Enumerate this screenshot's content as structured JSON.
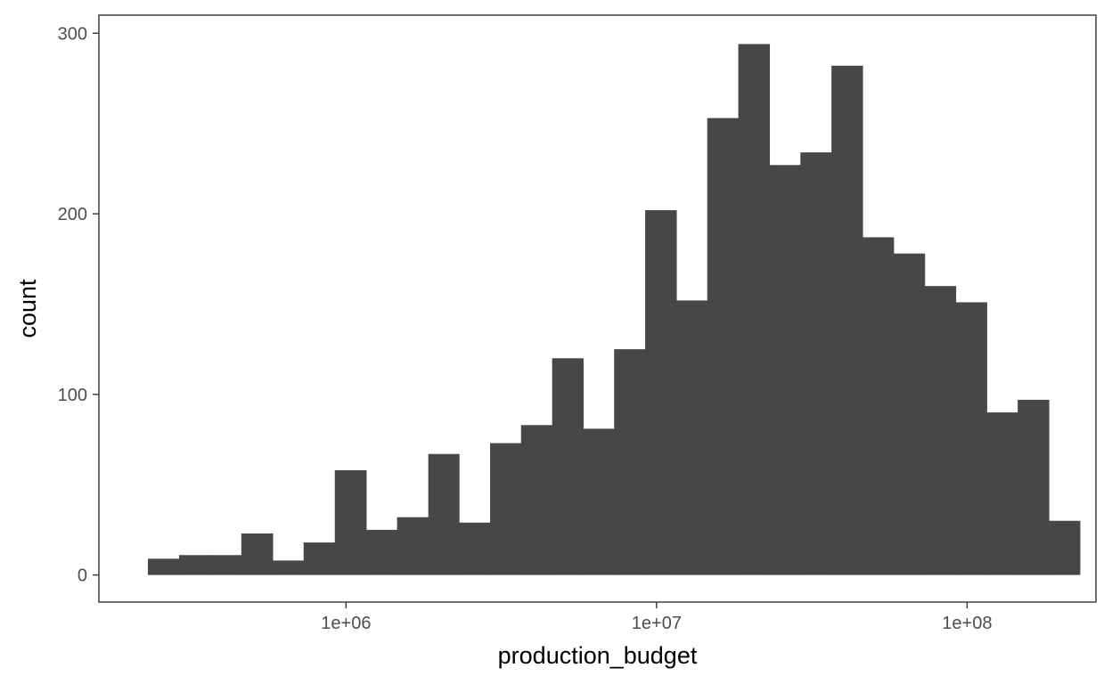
{
  "chart_data": {
    "type": "bar",
    "subtype": "histogram",
    "xlabel": "production_budget",
    "ylabel": "count",
    "x_scale": "log10",
    "xlim": [
      160000,
      260000000
    ],
    "ylim": [
      -15,
      310
    ],
    "x_ticks": [
      {
        "value": 1000000,
        "label": "1e+06"
      },
      {
        "value": 10000000,
        "label": "1e+07"
      },
      {
        "value": 100000000,
        "label": "1e+08"
      }
    ],
    "y_ticks": [
      {
        "value": 0,
        "label": "0"
      },
      {
        "value": 100,
        "label": "100"
      },
      {
        "value": 200,
        "label": "200"
      },
      {
        "value": 300,
        "label": "300"
      }
    ],
    "bins": [
      {
        "x0": 230000,
        "x1": 290000,
        "count": 9
      },
      {
        "x0": 290000,
        "x1": 370000,
        "count": 11
      },
      {
        "x0": 370000,
        "x1": 460000,
        "count": 11
      },
      {
        "x0": 460000,
        "x1": 580000,
        "count": 23
      },
      {
        "x0": 580000,
        "x1": 730000,
        "count": 8
      },
      {
        "x0": 730000,
        "x1": 920000,
        "count": 18
      },
      {
        "x0": 920000,
        "x1": 1160000,
        "count": 58
      },
      {
        "x0": 1160000,
        "x1": 1460000,
        "count": 25
      },
      {
        "x0": 1460000,
        "x1": 1840000,
        "count": 32
      },
      {
        "x0": 1840000,
        "x1": 2310000,
        "count": 67
      },
      {
        "x0": 2310000,
        "x1": 2910000,
        "count": 29
      },
      {
        "x0": 2910000,
        "x1": 3660000,
        "count": 73
      },
      {
        "x0": 3660000,
        "x1": 4610000,
        "count": 83
      },
      {
        "x0": 4610000,
        "x1": 5800000,
        "count": 120
      },
      {
        "x0": 5800000,
        "x1": 7300000,
        "count": 81
      },
      {
        "x0": 7300000,
        "x1": 9190000,
        "count": 125
      },
      {
        "x0": 9190000,
        "x1": 11570000,
        "count": 202
      },
      {
        "x0": 11570000,
        "x1": 14560000,
        "count": 152
      },
      {
        "x0": 14560000,
        "x1": 18330000,
        "count": 253
      },
      {
        "x0": 18330000,
        "x1": 23080000,
        "count": 294
      },
      {
        "x0": 23080000,
        "x1": 29050000,
        "count": 227
      },
      {
        "x0": 29050000,
        "x1": 36570000,
        "count": 234
      },
      {
        "x0": 36570000,
        "x1": 46030000,
        "count": 282
      },
      {
        "x0": 46030000,
        "x1": 57940000,
        "count": 187
      },
      {
        "x0": 57940000,
        "x1": 72940000,
        "count": 178
      },
      {
        "x0": 72940000,
        "x1": 91830000,
        "count": 160
      },
      {
        "x0": 91830000,
        "x1": 115600000,
        "count": 151
      },
      {
        "x0": 115600000,
        "x1": 145500000,
        "count": 90
      },
      {
        "x0": 145500000,
        "x1": 183200000,
        "count": 97
      },
      {
        "x0": 183200000,
        "x1": 230600000,
        "count": 30
      }
    ],
    "grid": false,
    "bar_color": "#474747",
    "panel_border_color": "#333333",
    "tick_color": "#333333",
    "tick_label_color": "#4d4d4d",
    "background": "#ffffff"
  }
}
